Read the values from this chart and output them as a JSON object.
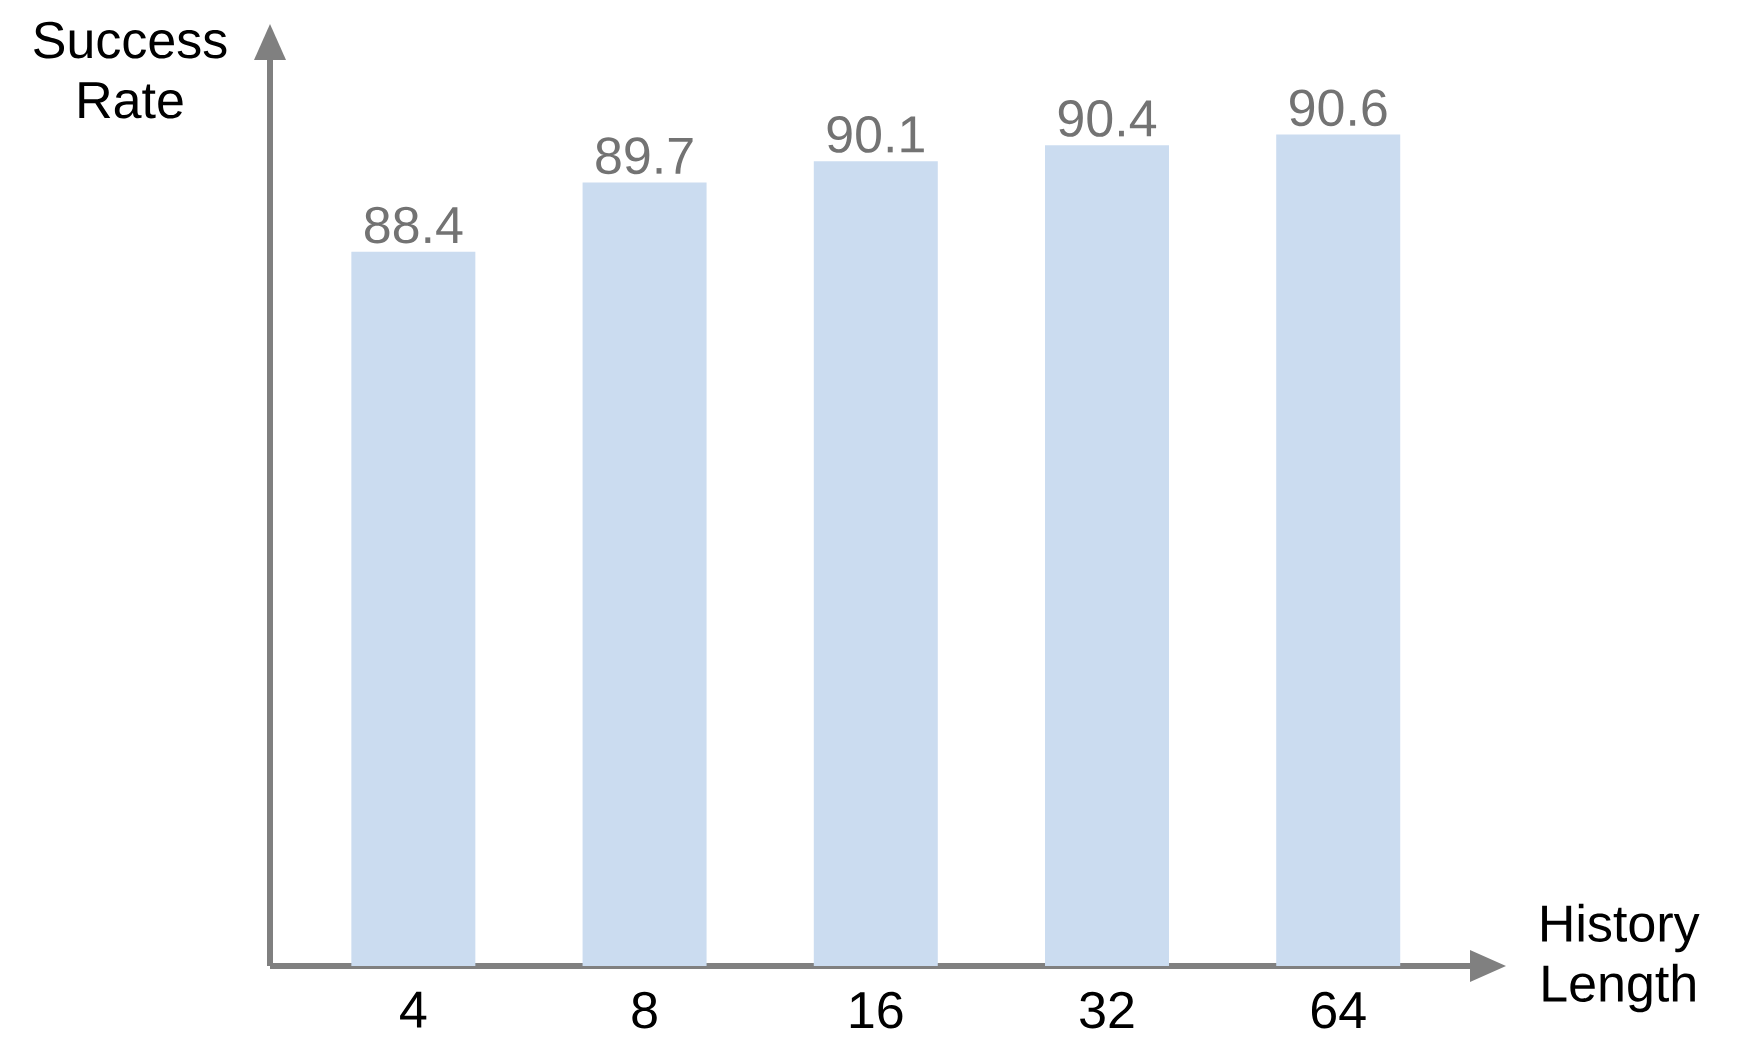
{
  "chart_data": {
    "type": "bar",
    "xlabel": "History Length",
    "ylabel": "Success Rate",
    "categories": [
      "4",
      "8",
      "16",
      "32",
      "64"
    ],
    "values": [
      88.4,
      89.7,
      90.1,
      90.4,
      90.6
    ],
    "color": "#cbdcf0",
    "ylim": [
      75,
      92
    ],
    "data_labels": true,
    "tick_labels": "x"
  }
}
